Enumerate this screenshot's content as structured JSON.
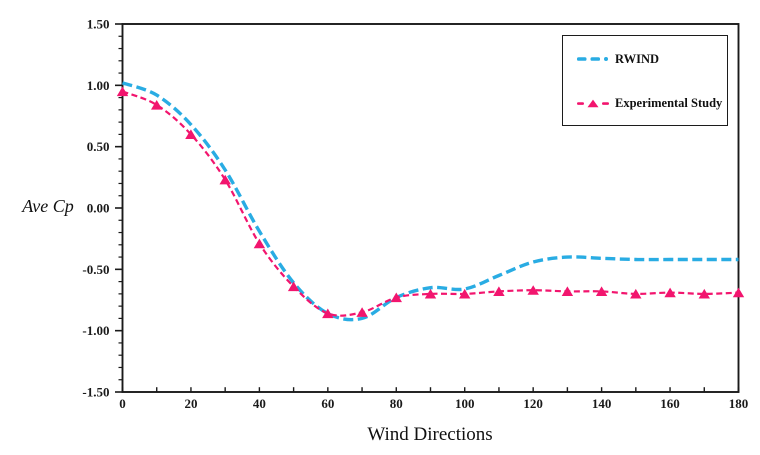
{
  "chart_data": {
    "type": "line",
    "title": "",
    "xlabel": "Wind Directions",
    "ylabel": "Ave Cp",
    "xlim": [
      0,
      180
    ],
    "ylim": [
      -1.5,
      1.5
    ],
    "x_major_tick_step": 20,
    "x_minor_tick_step": 10,
    "y_major_tick_step": 0.5,
    "y_minor_tick_step": 0.1,
    "x_tick_labels": [
      "0",
      "20",
      "40",
      "60",
      "80",
      "100",
      "120",
      "140",
      "160",
      "180"
    ],
    "y_tick_labels": [
      "1.50",
      "1.00",
      "0.50",
      "0.00",
      "-0.50",
      "-1.00",
      "-1.50"
    ],
    "grid": false,
    "legend_position": "top-right",
    "x": [
      0,
      10,
      20,
      30,
      40,
      50,
      60,
      70,
      80,
      90,
      100,
      110,
      120,
      130,
      140,
      150,
      160,
      170,
      180
    ],
    "series": [
      {
        "name": "RWIND",
        "color": "#29ACE3",
        "line_style": "dashed",
        "line_width": 3.4,
        "marker": "none",
        "values": [
          1.02,
          0.92,
          0.68,
          0.31,
          -0.19,
          -0.61,
          -0.86,
          -0.9,
          -0.73,
          -0.65,
          -0.66,
          -0.55,
          -0.44,
          -0.4,
          -0.41,
          -0.42,
          -0.42,
          -0.42,
          -0.42
        ]
      },
      {
        "name": "Experimental Study",
        "color": "#F2156E",
        "line_style": "dashed",
        "line_width": 2.2,
        "marker": "triangle",
        "values": [
          0.95,
          0.84,
          0.6,
          0.23,
          -0.29,
          -0.64,
          -0.86,
          -0.85,
          -0.73,
          -0.7,
          -0.7,
          -0.68,
          -0.67,
          -0.68,
          -0.68,
          -0.7,
          -0.69,
          -0.7,
          -0.69
        ]
      }
    ],
    "axis_color": "#1a1a1a"
  }
}
